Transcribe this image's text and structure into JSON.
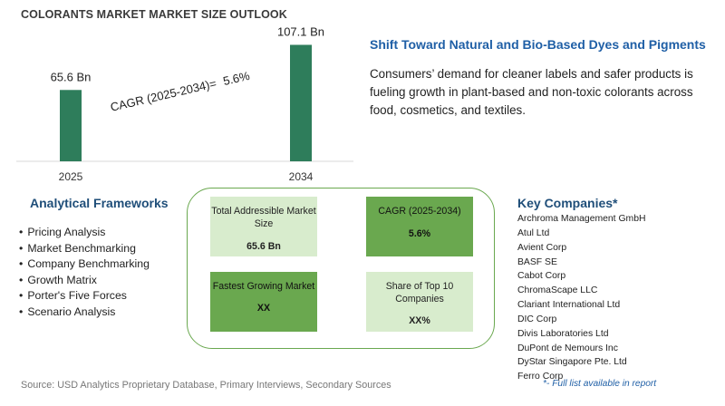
{
  "title": "COLORANTS MARKET MARKET SIZE OUTLOOK",
  "chart_data": {
    "type": "bar",
    "categories": [
      "2025",
      "2034"
    ],
    "values": [
      65.6,
      107.1
    ],
    "data_labels": [
      "65.6 Bn",
      "107.1 Bn"
    ],
    "bar_color": "#2e7d5b",
    "annotation": {
      "label": "CAGR (2025-2034)=",
      "value": "5.6%"
    }
  },
  "trend": {
    "title": "Shift Toward Natural and Bio-Based Dyes and Pigments",
    "description": "Consumers’ demand for cleaner labels and safer products is fueling growth in plant-based and non-toxic colorants across food, cosmetics, and textiles."
  },
  "frameworks": {
    "title": "Analytical Frameworks",
    "items": [
      "Pricing Analysis",
      "Market Benchmarking",
      "Company Benchmarking",
      "Growth Matrix",
      "Porter's Five Forces",
      "Scenario Analysis"
    ]
  },
  "kpis": [
    {
      "label": "Total Addressible Market Size",
      "value": "65.6 Bn",
      "color": "#d8eccd"
    },
    {
      "label": "CAGR (2025-2034)",
      "value": "5.6%",
      "color": "#6aa84f"
    },
    {
      "label": "Fastest Growing Market",
      "value": "XX",
      "color": "#6aa84f"
    },
    {
      "label": "Share of Top 10 Companies",
      "value": "XX%",
      "color": "#d8eccd"
    }
  ],
  "companies": {
    "title": "Key Companies*",
    "items": [
      "Archroma Management GmbH",
      "Atul Ltd",
      "Avient Corp",
      "BASF SE",
      "Cabot Corp",
      "ChromaScape LLC",
      "Clariant International Ltd",
      "DIC Corp",
      "Divis Laboratories Ltd",
      "DuPont de Nemours Inc",
      "DyStar Singapore Pte. Ltd",
      "Ferro Corp"
    ],
    "footnote": "*- Full list available in report"
  },
  "source": "Source: USD Analytics Proprietary Database, Primary Interviews, Secondary Sources"
}
